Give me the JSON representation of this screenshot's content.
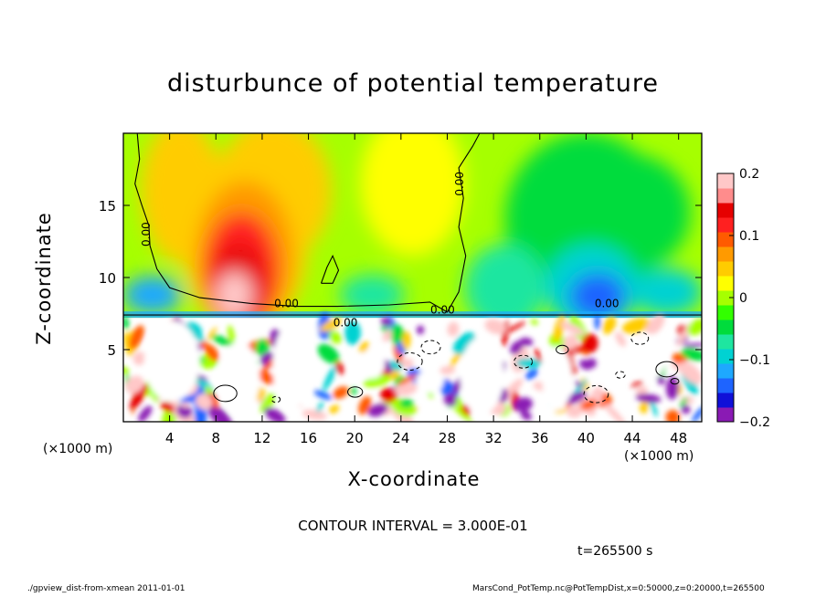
{
  "chart_data": {
    "type": "heatmap",
    "title": "disturbunce of potential temperature",
    "xlabel": "X-coordinate",
    "ylabel": "Z-coordinate",
    "x_unit_left": "(×1000 m)",
    "x_unit_right": "(×1000 m)",
    "xlim": [
      0,
      50
    ],
    "ylim": [
      0,
      20
    ],
    "x_ticks": [
      4,
      8,
      12,
      16,
      20,
      24,
      28,
      32,
      36,
      40,
      44,
      48
    ],
    "x_tick_labels": [
      "4",
      "8",
      "12",
      "16",
      "20",
      "24",
      "28",
      "32",
      "36",
      "40",
      "44",
      "48"
    ],
    "y_ticks": [
      5,
      10,
      15
    ],
    "y_tick_labels": [
      "5",
      "10",
      "15"
    ],
    "colorbar": {
      "range": [
        -0.2,
        0.2
      ],
      "ticks": [
        0.2,
        0.1,
        0,
        -0.1,
        -0.2
      ],
      "tick_labels": [
        "0.2",
        "0.1",
        "0",
        "−0.1",
        "−0.2"
      ]
    },
    "contour_labels": [
      "0.00",
      "0.00",
      "0.00",
      "0.00",
      "0.00",
      "0.00"
    ],
    "features": [
      {
        "x": 9,
        "z": 10,
        "value": 0.18
      },
      {
        "x": 13,
        "z": 13,
        "value": 0.12
      },
      {
        "x": 40,
        "z": 10,
        "value": -0.12
      },
      {
        "x": 33,
        "z": 9,
        "value": -0.1
      },
      {
        "x": 25,
        "z": 16,
        "value": 0.03
      }
    ],
    "contour_interval": "CONTOUR INTERVAL = 3.000E-01",
    "time_label": "t=265500  s"
  },
  "footer": {
    "left": "./gpview_dist-from-xmean  2011-01-01",
    "right": "MarsCond_PotTemp.nc@PotTempDist,x=0:50000,z=0:20000,t=265500"
  },
  "colors": {
    "scale": [
      "#8a1ab4",
      "#1010d8",
      "#1e64ff",
      "#1ea8ff",
      "#00d2d2",
      "#1ee6a0",
      "#00dc3c",
      "#32ff00",
      "#a6ff00",
      "#ffff00",
      "#ffcc00",
      "#ff9a00",
      "#ff5a00",
      "#ff2020",
      "#e60000",
      "#ff8c8c",
      "#ffc8c8"
    ]
  }
}
